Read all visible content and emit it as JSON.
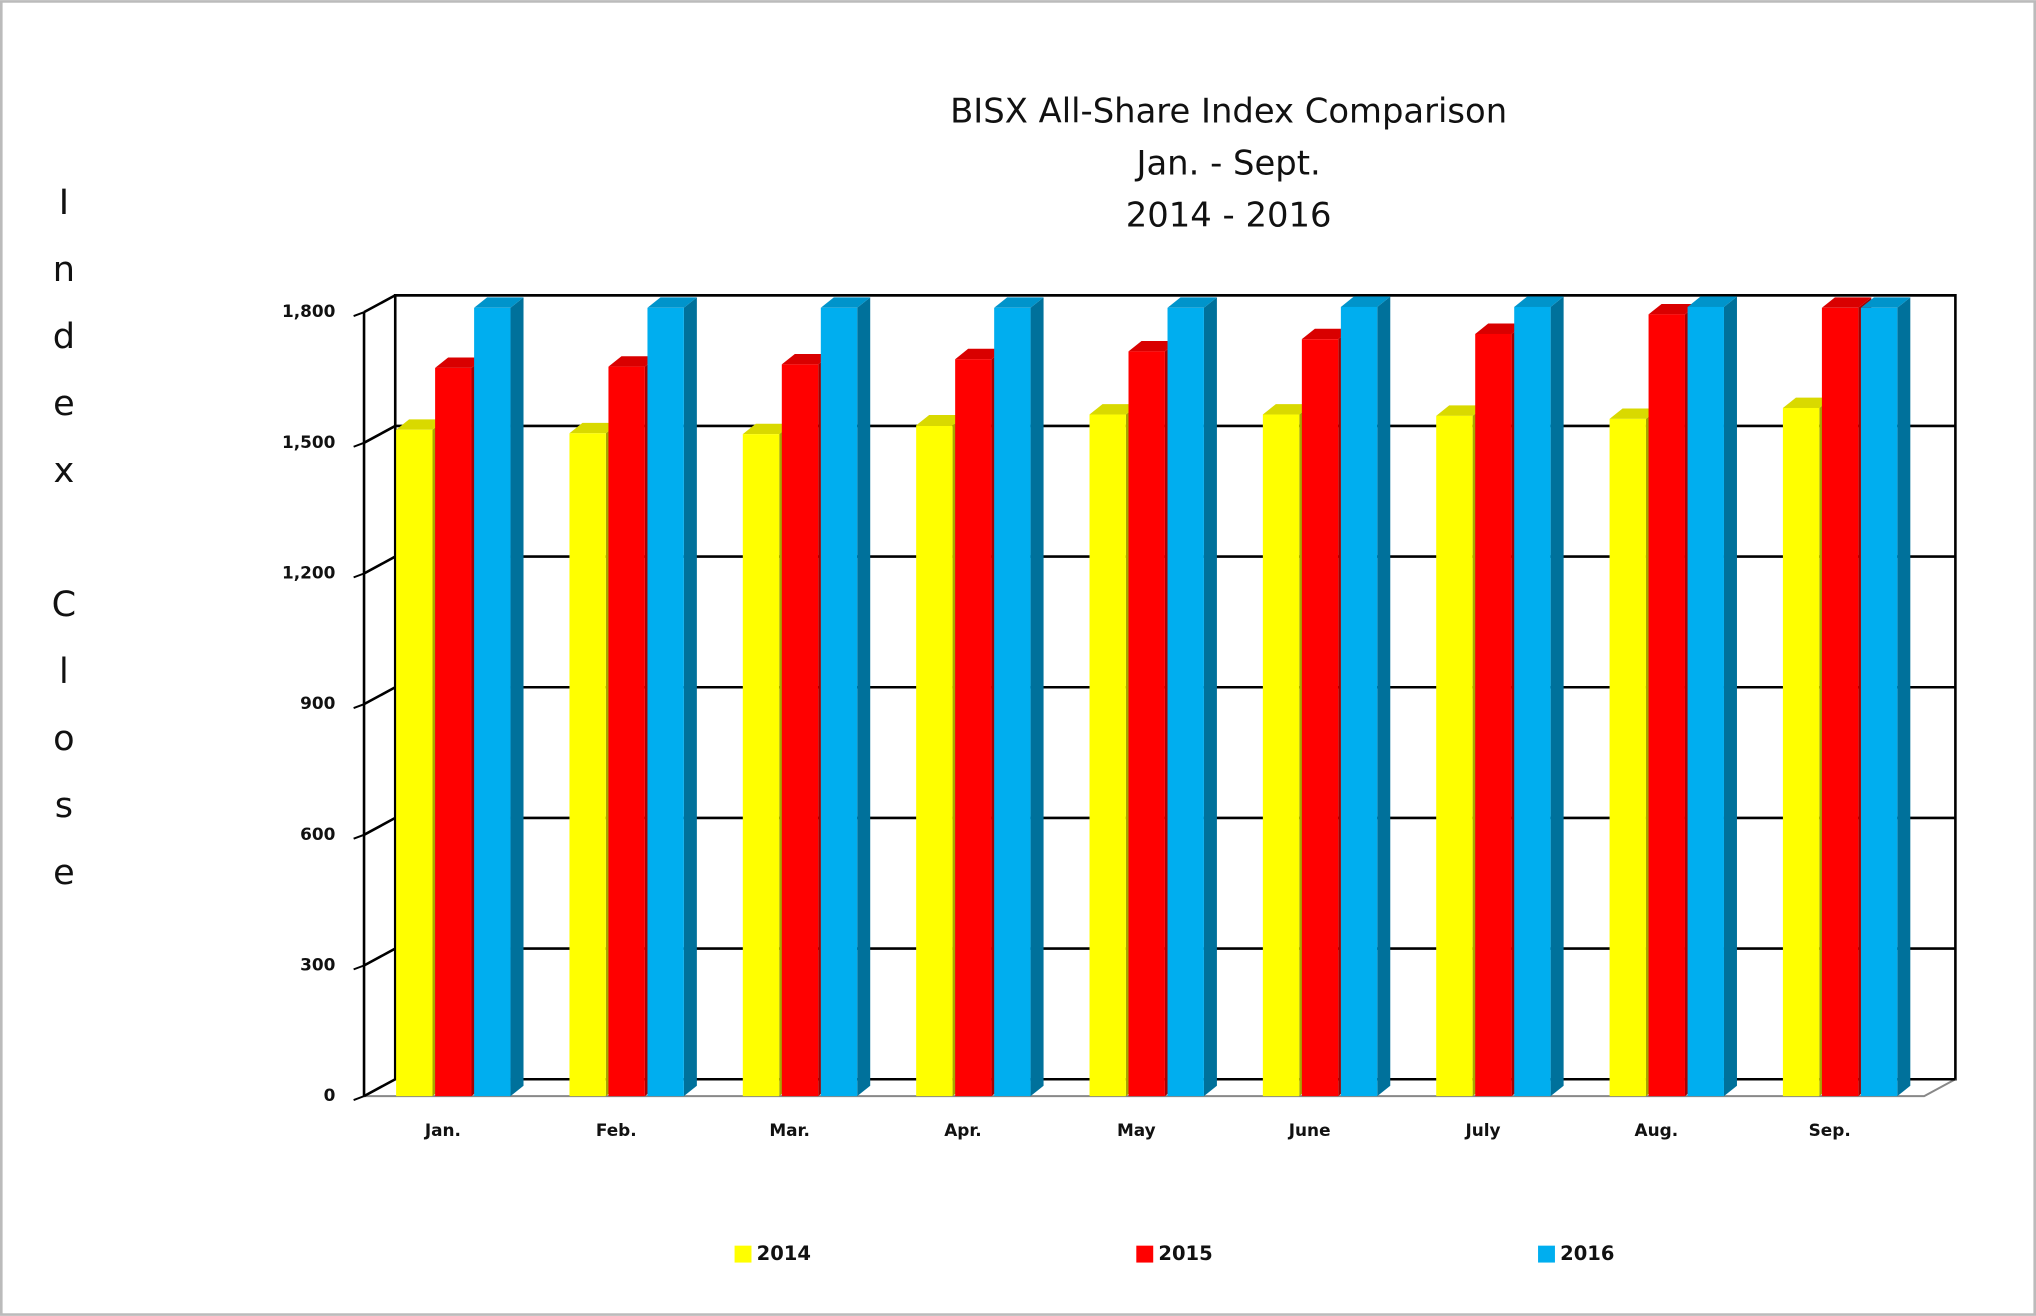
{
  "chart_data": {
    "type": "bar3d",
    "title_lines": [
      "BISX All-Share Index Comparison",
      "Jan. - Sept.",
      "2014 - 2016"
    ],
    "y_label": "Index Close",
    "categories": [
      "Jan.",
      "Feb.",
      "Mar.",
      "Apr.",
      "May",
      "June",
      "July",
      "Aug.",
      "Sep."
    ],
    "series": [
      {
        "name": "2014",
        "color": "#ffff00",
        "values": [
          1530,
          1522,
          1520,
          1540,
          1565,
          1565,
          1562,
          1555,
          1580
        ]
      },
      {
        "name": "2015",
        "color": "#ff0000",
        "values": [
          1672,
          1675,
          1680,
          1692,
          1710,
          1738,
          1750,
          1795,
          1810
        ]
      },
      {
        "name": "2016",
        "color": "#00aeef",
        "values": [
          1810,
          1810,
          1810,
          1810,
          1810,
          1812,
          1812,
          1812,
          1810
        ]
      }
    ],
    "ylim": [
      0,
      1800
    ],
    "yticks": [
      0,
      300,
      600,
      900,
      {
        "value": 1200,
        "label": "1,200"
      },
      {
        "value": 1500,
        "label": "1,500"
      },
      {
        "value": 1800,
        "label": "1,800"
      }
    ],
    "grid": true
  }
}
